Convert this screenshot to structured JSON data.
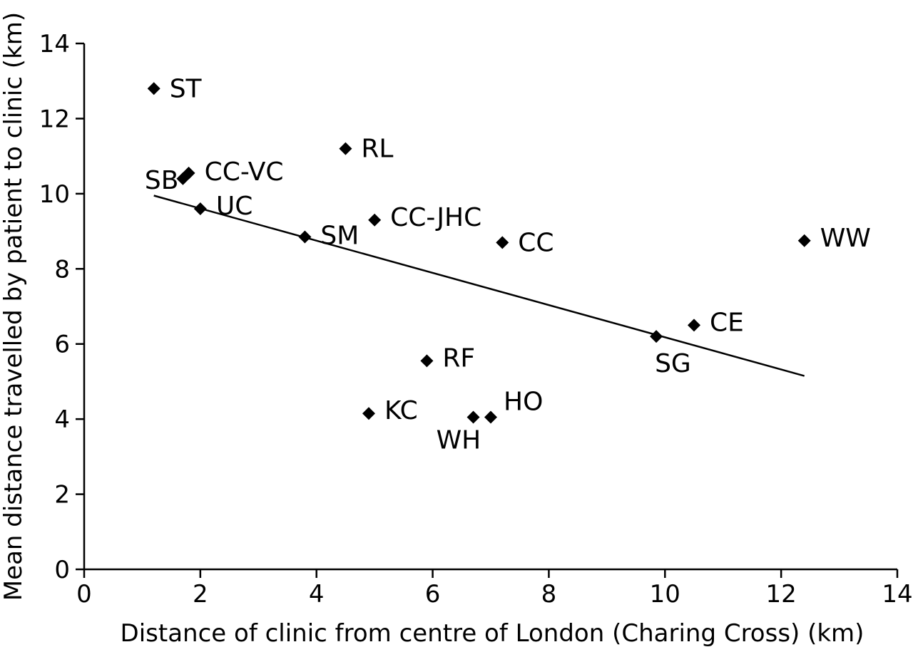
{
  "chart_data": {
    "type": "scatter",
    "title": "",
    "xlabel": "Distance of clinic from centre of London (Charing Cross) (km)",
    "ylabel": "Mean distance travelled by patient to clinic (km)",
    "xlim": [
      0,
      14
    ],
    "ylim": [
      0,
      14
    ],
    "xticks": [
      0,
      2,
      4,
      6,
      8,
      10,
      12,
      14
    ],
    "yticks": [
      0,
      2,
      4,
      6,
      8,
      10,
      12,
      14
    ],
    "grid": false,
    "marker": "diamond",
    "points": [
      {
        "label": "ST",
        "x": 1.2,
        "y": 12.8
      },
      {
        "label": "SB",
        "x": 1.7,
        "y": 10.4
      },
      {
        "label": "CC-VC",
        "x": 1.8,
        "y": 10.55
      },
      {
        "label": "UC",
        "x": 2.0,
        "y": 9.6
      },
      {
        "label": "SM",
        "x": 3.8,
        "y": 8.85
      },
      {
        "label": "RL",
        "x": 4.5,
        "y": 11.2
      },
      {
        "label": "CC-JHC",
        "x": 5.0,
        "y": 9.3
      },
      {
        "label": "CC",
        "x": 7.2,
        "y": 8.7
      },
      {
        "label": "WW",
        "x": 12.4,
        "y": 8.75
      },
      {
        "label": "CE",
        "x": 10.5,
        "y": 6.5
      },
      {
        "label": "SG",
        "x": 9.85,
        "y": 6.2
      },
      {
        "label": "RF",
        "x": 5.9,
        "y": 5.55
      },
      {
        "label": "KC",
        "x": 4.9,
        "y": 4.15
      },
      {
        "label": "HO",
        "x": 7.0,
        "y": 4.05
      },
      {
        "label": "WH",
        "x": 6.7,
        "y": 4.05
      }
    ],
    "trendline": {
      "x": [
        1.2,
        12.4
      ],
      "y": [
        9.95,
        5.15
      ]
    },
    "colors": {
      "marker": "#000000",
      "line": "#000000",
      "axis": "#000000"
    }
  }
}
